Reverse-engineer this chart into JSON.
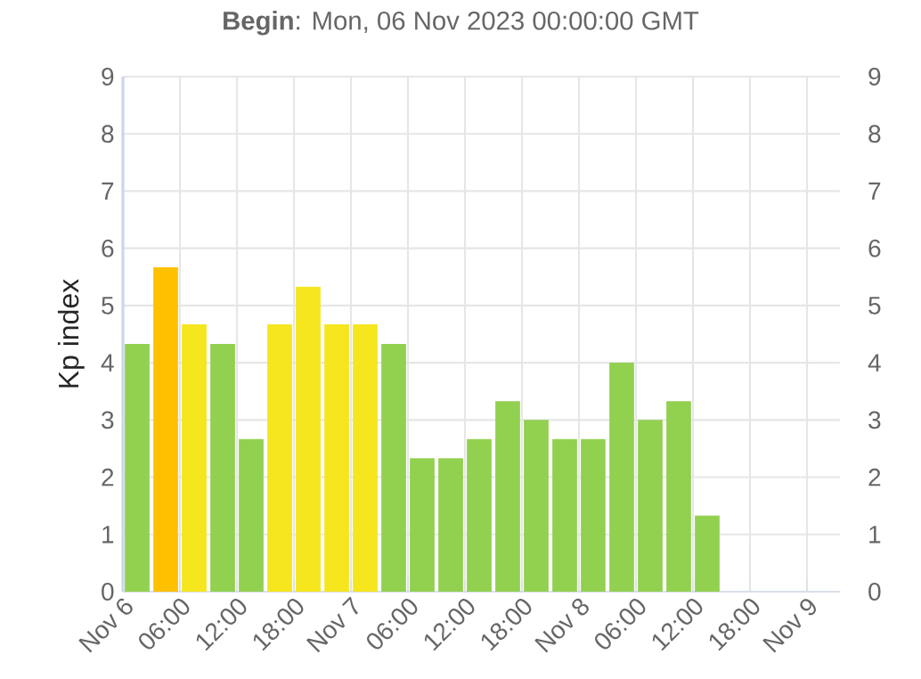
{
  "chart_data": {
    "type": "bar",
    "title": "**Begin**: Mon, 06 Nov 2023 00:00:00 GMT",
    "ylabel": "Kp index",
    "x": [
      "2023-11-06T01:30",
      "2023-11-06T04:30",
      "2023-11-06T07:30",
      "2023-11-06T10:30",
      "2023-11-06T13:30",
      "2023-11-06T16:30",
      "2023-11-06T19:30",
      "2023-11-06T22:30",
      "2023-11-07T01:30",
      "2023-11-07T04:30",
      "2023-11-07T07:30",
      "2023-11-07T10:30",
      "2023-11-07T13:30",
      "2023-11-07T16:30",
      "2023-11-07T19:30",
      "2023-11-07T22:30",
      "2023-11-08T01:30",
      "2023-11-08T04:30",
      "2023-11-08T07:30",
      "2023-11-08T10:30",
      "2023-11-08T13:30"
    ],
    "values": [
      4.33,
      5.67,
      4.67,
      4.33,
      2.67,
      4.67,
      5.33,
      4.67,
      4.67,
      4.33,
      2.33,
      2.33,
      2.67,
      3.33,
      3.0,
      2.67,
      2.67,
      4.0,
      3.0,
      3.33,
      1.33
    ],
    "colors": [
      "#92d050",
      "#ffc000",
      "#f5e61e",
      "#92d050",
      "#92d050",
      "#f5e61e",
      "#f5e61e",
      "#f5e61e",
      "#f5e61e",
      "#92d050",
      "#92d050",
      "#92d050",
      "#92d050",
      "#92d050",
      "#92d050",
      "#92d050",
      "#92d050",
      "#92d050",
      "#92d050",
      "#92d050",
      "#92d050"
    ],
    "xlim": [
      "2023-11-06T00:00",
      "2023-11-09T03:30"
    ],
    "xticks": [
      {
        "value": "2023-11-06T00:00",
        "label": "Nov 6"
      },
      {
        "value": "2023-11-06T06:00",
        "label": "06:00"
      },
      {
        "value": "2023-11-06T12:00",
        "label": "12:00"
      },
      {
        "value": "2023-11-06T18:00",
        "label": "18:00"
      },
      {
        "value": "2023-11-07T00:00",
        "label": "Nov 7"
      },
      {
        "value": "2023-11-07T06:00",
        "label": "06:00"
      },
      {
        "value": "2023-11-07T12:00",
        "label": "12:00"
      },
      {
        "value": "2023-11-07T18:00",
        "label": "18:00"
      },
      {
        "value": "2023-11-08T00:00",
        "label": "Nov 8"
      },
      {
        "value": "2023-11-08T06:00",
        "label": "06:00"
      },
      {
        "value": "2023-11-08T12:00",
        "label": "12:00"
      },
      {
        "value": "2023-11-08T18:00",
        "label": "18:00"
      },
      {
        "value": "2023-11-09T00:00",
        "label": "Nov 9"
      }
    ],
    "ylim": [
      0,
      9
    ],
    "yticks": [
      0,
      1,
      2,
      3,
      4,
      5,
      6,
      7,
      8,
      9
    ],
    "y2lim": [
      0,
      9
    ],
    "y2ticks": [
      0,
      1,
      2,
      3,
      4,
      5,
      6,
      7,
      8,
      9
    ],
    "grid": true
  }
}
